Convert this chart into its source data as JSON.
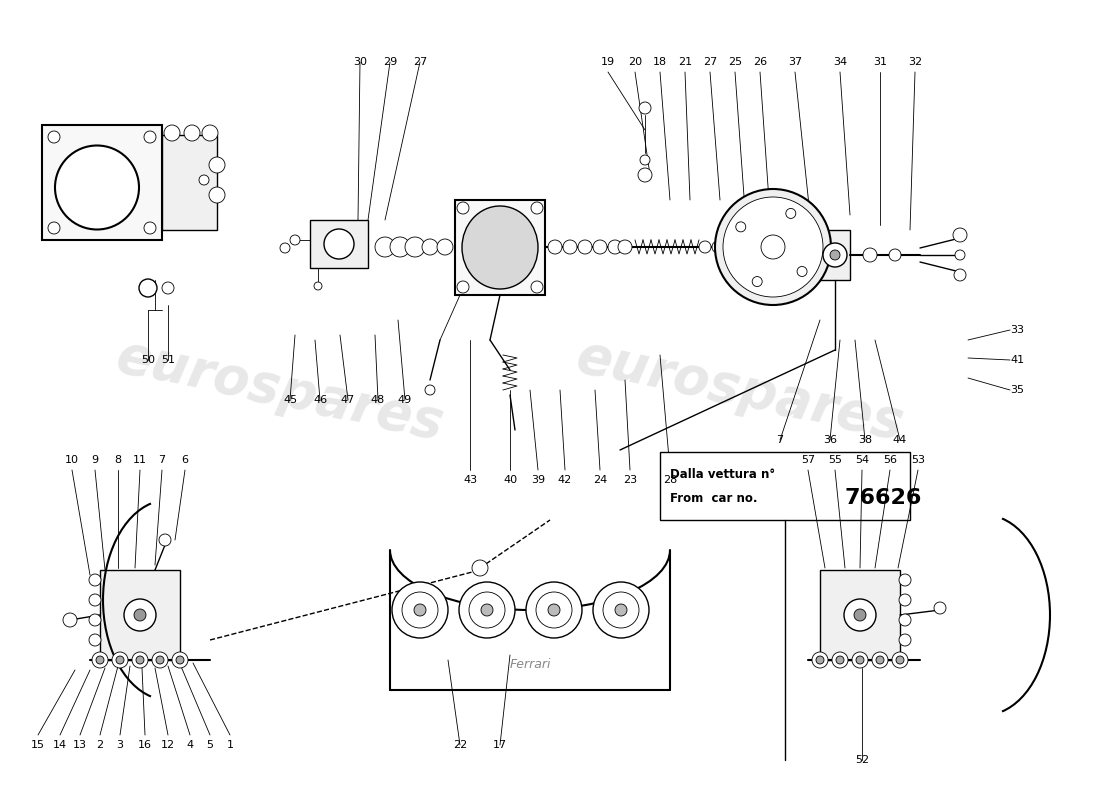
{
  "bg_color": "#ffffff",
  "text_color": "#000000",
  "watermark_text": "eurospares",
  "from_car_it": "Dalla vettura n°",
  "from_car_en": "From  car no.",
  "car_number": "76626",
  "figsize": [
    11.0,
    8.0
  ],
  "dpi": 100
}
